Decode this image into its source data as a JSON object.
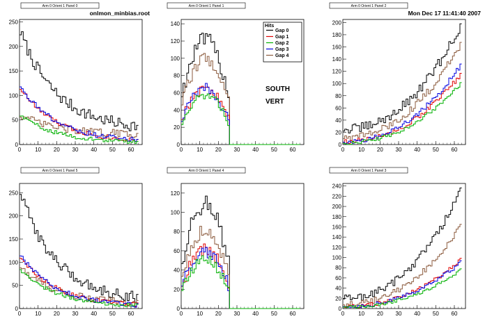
{
  "header": {
    "filename": "onlmon_minbias.root",
    "datetime": "Mon Dec 17 11:41:40 2007"
  },
  "annotations": [
    "SOUTH",
    "VERT"
  ],
  "legend": {
    "title": "Hits",
    "entries": [
      "Gap 0",
      "Gap 1",
      "Gap 2",
      "Gap 3",
      "Gap 4"
    ]
  },
  "colors": {
    "Gap 0": "#000000",
    "Gap 1": "#e00000",
    "Gap 2": "#00b000",
    "Gap 3": "#0000e0",
    "Gap 4": "#8b5a3c"
  },
  "chart_data": [
    {
      "type": "histogram",
      "title": "Arm 0 Orient 1 Panel 0",
      "xlim": [
        0,
        66
      ],
      "ylim": [
        0,
        255
      ],
      "xticks": [
        0,
        10,
        20,
        30,
        40,
        50,
        60
      ],
      "yticks": [
        0,
        50,
        100,
        150,
        200,
        250
      ],
      "shape": "falling",
      "series": [
        {
          "name": "Gap 0",
          "start": 230,
          "end": 30,
          "noise": 12
        },
        {
          "name": "Gap 4",
          "start": 60,
          "end": 20,
          "noise": 8
        },
        {
          "name": "Gap 1",
          "start": 115,
          "end": 5,
          "noise": 5
        },
        {
          "name": "Gap 3",
          "start": 120,
          "end": 5,
          "noise": 5
        },
        {
          "name": "Gap 2",
          "start": 60,
          "end": 3,
          "noise": 4
        }
      ]
    },
    {
      "type": "histogram",
      "title": "Arm 0 Orient 1 Panel 1",
      "xlim": [
        0,
        66
      ],
      "ylim": [
        0,
        145
      ],
      "xticks": [
        0,
        10,
        20,
        30,
        40,
        50,
        60
      ],
      "yticks": [
        0,
        20,
        40,
        60,
        80,
        100,
        120,
        140
      ],
      "shape": "hump",
      "cutoff": 26,
      "series": [
        {
          "name": "Gap 0",
          "start": 85,
          "end": 122,
          "noise": 9
        },
        {
          "name": "Gap 4",
          "start": 70,
          "end": 100,
          "noise": 7
        },
        {
          "name": "Gap 1",
          "start": 45,
          "end": 65,
          "noise": 6
        },
        {
          "name": "Gap 3",
          "start": 42,
          "end": 65,
          "noise": 6
        },
        {
          "name": "Gap 2",
          "start": 36,
          "end": 58,
          "noise": 5
        }
      ]
    },
    {
      "type": "histogram",
      "title": "Arm 0 Orient 1 Panel 2",
      "xlim": [
        0,
        66
      ],
      "ylim": [
        0,
        205
      ],
      "xticks": [
        0,
        10,
        20,
        30,
        40,
        50,
        60
      ],
      "yticks": [
        0,
        20,
        40,
        60,
        80,
        100,
        120,
        140,
        160,
        180,
        200
      ],
      "shape": "rising",
      "cutoff": 64,
      "series": [
        {
          "name": "Gap 0",
          "start": 25,
          "end": 195,
          "noise": 8
        },
        {
          "name": "Gap 4",
          "start": 12,
          "end": 165,
          "noise": 6
        },
        {
          "name": "Gap 1",
          "start": 5,
          "end": 115,
          "noise": 4
        },
        {
          "name": "Gap 3",
          "start": 5,
          "end": 130,
          "noise": 4
        },
        {
          "name": "Gap 2",
          "start": 3,
          "end": 100,
          "noise": 3
        }
      ]
    },
    {
      "type": "histogram",
      "title": "Arm 0 Orient 1 Panel 5",
      "xlim": [
        0,
        66
      ],
      "ylim": [
        0,
        270
      ],
      "xticks": [
        0,
        10,
        20,
        30,
        40,
        50,
        60
      ],
      "yticks": [
        0,
        50,
        100,
        150,
        200,
        250
      ],
      "shape": "falling",
      "series": [
        {
          "name": "Gap 0",
          "start": 250,
          "end": 15,
          "noise": 12
        },
        {
          "name": "Gap 4",
          "start": 90,
          "end": 10,
          "noise": 8
        },
        {
          "name": "Gap 1",
          "start": 110,
          "end": 5,
          "noise": 5
        },
        {
          "name": "Gap 3",
          "start": 115,
          "end": 3,
          "noise": 5
        },
        {
          "name": "Gap 2",
          "start": 85,
          "end": 3,
          "noise": 4
        }
      ]
    },
    {
      "type": "histogram",
      "title": "Arm 0 Orient 1 Panel 4",
      "xlim": [
        0,
        66
      ],
      "ylim": [
        0,
        130
      ],
      "xticks": [
        0,
        10,
        20,
        30,
        40,
        50,
        60
      ],
      "yticks": [
        0,
        20,
        40,
        60,
        80,
        100,
        120
      ],
      "shape": "hump",
      "cutoff": 26,
      "series": [
        {
          "name": "Gap 0",
          "start": 70,
          "end": 110,
          "noise": 10
        },
        {
          "name": "Gap 4",
          "start": 50,
          "end": 82,
          "noise": 7
        },
        {
          "name": "Gap 1",
          "start": 35,
          "end": 62,
          "noise": 7
        },
        {
          "name": "Gap 3",
          "start": 35,
          "end": 58,
          "noise": 6
        },
        {
          "name": "Gap 2",
          "start": 28,
          "end": 52,
          "noise": 5
        }
      ]
    },
    {
      "type": "histogram",
      "title": "Arm 0 Orient 1 Panel 3",
      "xlim": [
        0,
        66
      ],
      "ylim": [
        0,
        245
      ],
      "xticks": [
        0,
        10,
        20,
        30,
        40,
        50,
        60
      ],
      "yticks": [
        0,
        20,
        40,
        60,
        80,
        100,
        120,
        140,
        160,
        180,
        200,
        220,
        240
      ],
      "shape": "rising",
      "cutoff": 64,
      "series": [
        {
          "name": "Gap 0",
          "start": 20,
          "end": 230,
          "noise": 8
        },
        {
          "name": "Gap 4",
          "start": 8,
          "end": 160,
          "noise": 6
        },
        {
          "name": "Gap 1",
          "start": 4,
          "end": 95,
          "noise": 4
        },
        {
          "name": "Gap 3",
          "start": 4,
          "end": 90,
          "noise": 4
        },
        {
          "name": "Gap 2",
          "start": 3,
          "end": 75,
          "noise": 3
        }
      ]
    }
  ]
}
